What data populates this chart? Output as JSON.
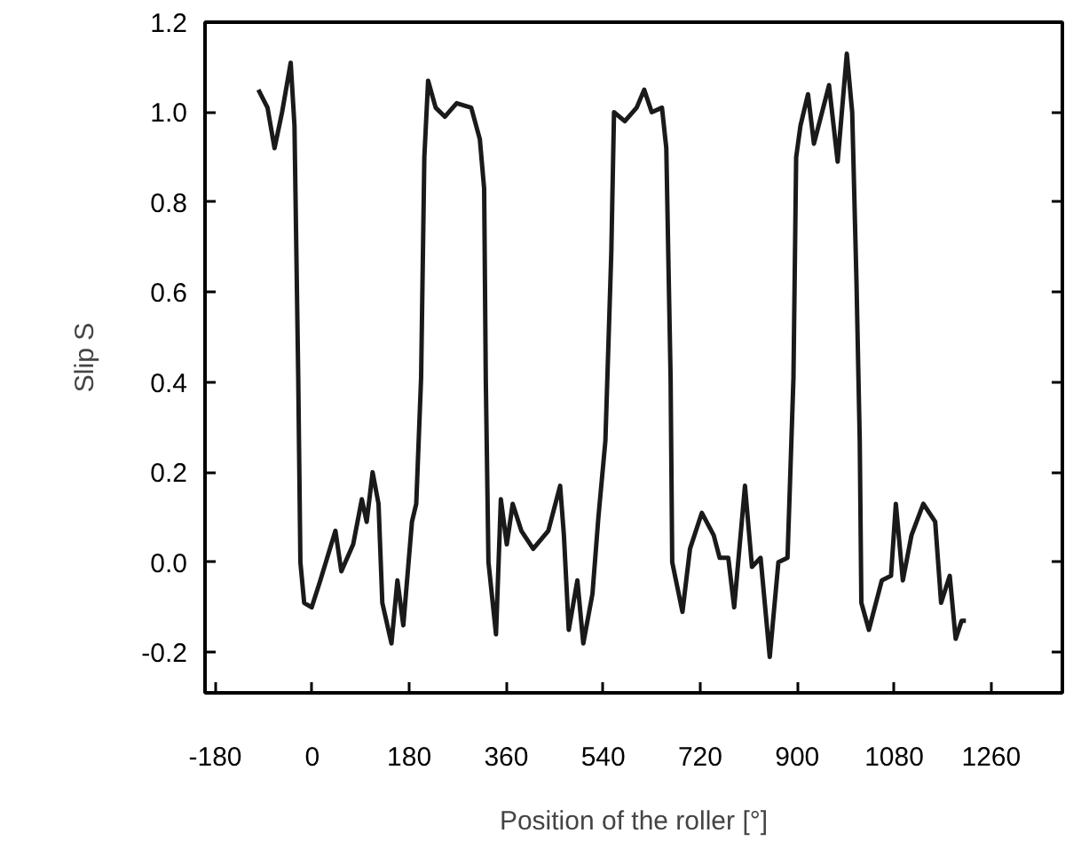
{
  "chart_data": {
    "type": "line",
    "xlabel": "Position of the roller [°]",
    "ylabel": "Slip S",
    "xlim": [
      -199,
      1392
    ],
    "ylim": [
      -0.29,
      1.2
    ],
    "xticks": [
      -180,
      0,
      180,
      360,
      540,
      720,
      900,
      1080,
      1260
    ],
    "yticks": [
      -0.2,
      {
        "value": 0,
        "label": "0.0"
      },
      0.2,
      0.4,
      0.6,
      0.8,
      {
        "value": 1,
        "label": "1.0"
      },
      1.2
    ],
    "grid": false,
    "marker": "none",
    "line_style": "solid",
    "series": [
      {
        "color": "#1a1a1a",
        "x": [
          -100,
          -83,
          -70,
          -56,
          -40,
          -33,
          -26,
          -22,
          -15,
          -1,
          15,
          43,
          54,
          76,
          92,
          101,
          112,
          123,
          130,
          147,
          158,
          169,
          185,
          193,
          202,
          208,
          215,
          229,
          246,
          268,
          295,
          311,
          319,
          322,
          327,
          341,
          350,
          361,
          372,
          388,
          410,
          438,
          460,
          467,
          476,
          492,
          503,
          520,
          531,
          544,
          555,
          560,
          580,
          602,
          616,
          630,
          649,
          657,
          665,
          668,
          687,
          701,
          723,
          745,
          756,
          772,
          783,
          803,
          816,
          832,
          849,
          865,
          882,
          893,
          898,
          906,
          920,
          931,
          959,
          975,
          992,
          1002,
          1010,
          1016,
          1019,
          1033,
          1057,
          1074,
          1083,
          1096,
          1112,
          1134,
          1156,
          1167,
          1183,
          1194,
          1205,
          1213
        ],
        "values": [
          1.05,
          1.01,
          0.92,
          1.0,
          1.11,
          0.97,
          0.41,
          0.0,
          -0.09,
          -0.1,
          -0.04,
          0.07,
          -0.02,
          0.04,
          0.14,
          0.09,
          0.2,
          0.13,
          -0.09,
          -0.18,
          -0.04,
          -0.14,
          0.09,
          0.13,
          0.41,
          0.9,
          1.07,
          1.01,
          0.99,
          1.02,
          1.01,
          0.94,
          0.83,
          0.41,
          0.0,
          -0.16,
          0.14,
          0.04,
          0.13,
          0.07,
          0.03,
          0.07,
          0.17,
          0.06,
          -0.15,
          -0.04,
          -0.18,
          -0.07,
          0.1,
          0.27,
          0.69,
          1.0,
          0.98,
          1.01,
          1.05,
          1.0,
          1.01,
          0.92,
          0.41,
          0.0,
          -0.11,
          0.03,
          0.11,
          0.06,
          0.01,
          0.01,
          -0.1,
          0.17,
          -0.01,
          0.01,
          -0.21,
          0.0,
          0.01,
          0.41,
          0.9,
          0.97,
          1.04,
          0.93,
          1.06,
          0.89,
          1.13,
          1.0,
          0.62,
          0.27,
          -0.09,
          -0.15,
          -0.04,
          -0.03,
          0.13,
          -0.04,
          0.06,
          0.13,
          0.09,
          -0.09,
          -0.03,
          -0.17,
          -0.13,
          -0.13
        ]
      }
    ]
  }
}
